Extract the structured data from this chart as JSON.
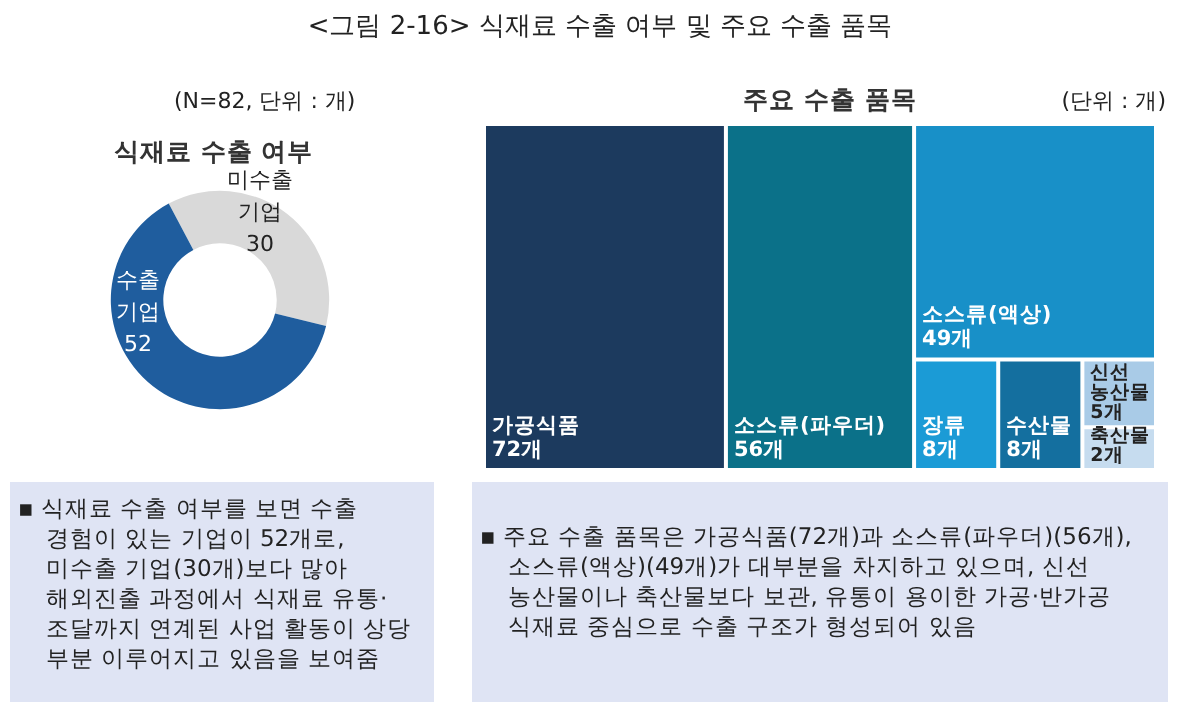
{
  "chart_data": [
    {
      "type": "donut",
      "title": "식재료 수출 여부",
      "subtitle": "(N=82, 단위 : 개)",
      "annotations": [
        "<그림 2-16> 식재료 수출 여부 및 주요 수출 품목",
        "▪ 식재료 수출 여부를 보면 수출 경험이 있는 기업이 52개로, 미수출 기업(30개)보다 많아 해외진출 과정에서 식재료 유통·조달까지 연계된 사업 활동이 상당 부분 이루어지고 있음을 보여줌"
      ],
      "categories": [
        "미수출 기업",
        "수출 기업"
      ],
      "values": [
        30,
        52
      ],
      "colors": [
        "#d9d9d9",
        "#1f5d9e"
      ],
      "data_labels": true,
      "legend": false
    },
    {
      "type": "other",
      "title": "주요 수출 품목",
      "subtitle": "(단위 : 개)",
      "annotations": [
        "▪ 주요 수출 품목은 가공식품(72개)과 소스류(파우더)(56개), 소스류(액상)(49개)가 대부분을 차지하고 있으며, 신선 농산물이나 축산물보다 보관, 유통이 용이한 가공·반가공 식재료 중심으로 수출 구조가 형성되어 있음"
      ],
      "categories": [
        "가공식품",
        "소스류(파우더)",
        "소스류(액상)",
        "장류",
        "수산물",
        "신선 농산물",
        "축산물"
      ],
      "values": [
        72,
        56,
        49,
        8,
        8,
        5,
        2
      ],
      "value_labels": [
        "72개",
        "56개",
        "49개",
        "8개",
        "8개",
        "5개",
        "2개"
      ],
      "colors": [
        "#1c3a5e",
        "#0b7189",
        "#1890c8",
        "#1b9bd6",
        "#146f9f",
        "#a9cbe7",
        "#c6dcef"
      ]
    }
  ]
}
